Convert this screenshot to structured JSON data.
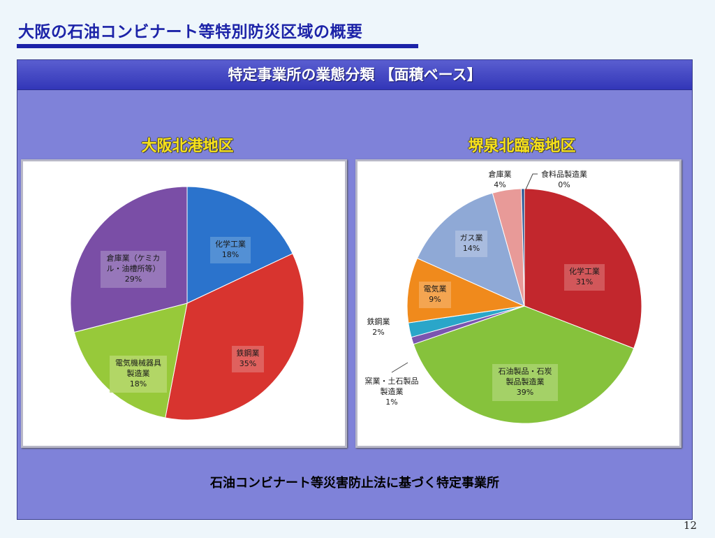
{
  "slide": {
    "title": "大阪の石油コンビナート等特別防災区域の概要",
    "panel_header": "特定事業所の業態分類 【面積ベース】",
    "footnote": "石油コンビナート等災害防止法に基づく特定事業所",
    "page_number": "12"
  },
  "chart_data": [
    {
      "type": "pie",
      "title": "大阪北港地区",
      "start_angle_deg": 0,
      "slices": [
        {
          "label": [
            "化学工業",
            "18%"
          ],
          "value": 18,
          "color": "#2b73cc"
        },
        {
          "label": [
            "鉄鋼業",
            "35%"
          ],
          "value": 35,
          "color": "#d8342f"
        },
        {
          "label": [
            "電気機械器具",
            "製造業",
            "18%"
          ],
          "value": 18,
          "color": "#97c93a"
        },
        {
          "label": [
            "倉庫業（ケミカ",
            "ル・油槽所等）",
            "29%"
          ],
          "value": 29,
          "color": "#7a4ea6"
        }
      ]
    },
    {
      "type": "pie",
      "title": "堺泉北臨海地区",
      "start_angle_deg": 0,
      "slices": [
        {
          "label": [
            "化学工業",
            "31%"
          ],
          "value": 31,
          "color": "#c2272d"
        },
        {
          "label": [
            "石油製品・石炭",
            "製品製造業",
            "39%"
          ],
          "value": 39,
          "color": "#86c23c"
        },
        {
          "label": [
            "窯業・土石製品",
            "製造業",
            "1%"
          ],
          "value": 1,
          "color": "#7b55b0"
        },
        {
          "label": [
            "鉄鋼業",
            "2%"
          ],
          "value": 2,
          "color": "#2aa6c9"
        },
        {
          "label": [
            "電気業",
            "9%"
          ],
          "value": 9,
          "color": "#f08a1c"
        },
        {
          "label": [
            "ガス業",
            "14%"
          ],
          "value": 14,
          "color": "#8fa9d6"
        },
        {
          "label": [
            "倉庫業",
            "4%"
          ],
          "value": 4,
          "color": "#e89a98"
        },
        {
          "label": [
            "食料品製造業",
            "0%"
          ],
          "value": 0.4,
          "color": "#1f4f8f"
        }
      ]
    }
  ]
}
